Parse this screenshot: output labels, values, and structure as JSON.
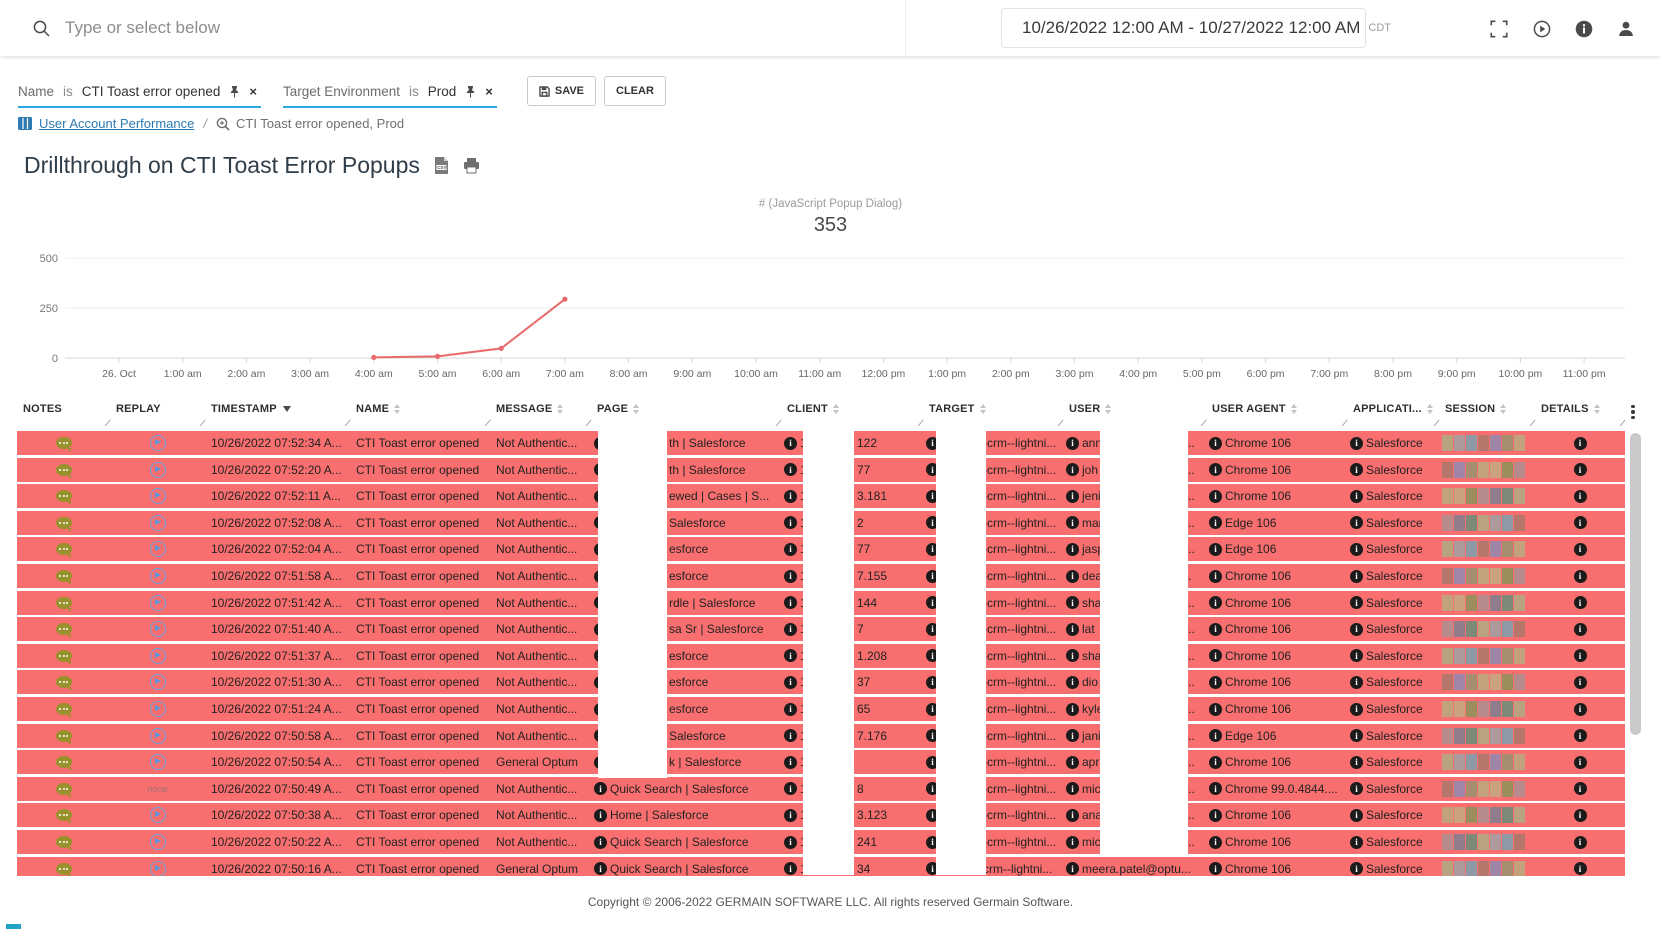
{
  "topbar": {
    "search_placeholder": "Type or select below",
    "date_range": "10/26/2022 12:00 AM - 10/27/2022 12:00 AM",
    "timezone": "CDT"
  },
  "filter_bar": {
    "filters": [
      {
        "field": "Name",
        "operator": "is",
        "value": "CTI Toast error opened"
      },
      {
        "field": "Target Environment",
        "operator": "is",
        "value": "Prod"
      }
    ],
    "save_label": "SAVE",
    "clear_label": "CLEAR"
  },
  "breadcrumb": {
    "root_label": "User Account Performance",
    "separator": "/",
    "current_label": "CTI Toast error opened, Prod"
  },
  "page_title": "Drillthrough on CTI Toast Error Popups",
  "chart_data": {
    "type": "line",
    "title": "# (JavaScript Popup Dialog)",
    "total_label": "353",
    "x_tick_labels": [
      "26. Oct",
      "1:00 am",
      "2:00 am",
      "3:00 am",
      "4:00 am",
      "5:00 am",
      "6:00 am",
      "7:00 am",
      "8:00 am",
      "9:00 am",
      "10:00 am",
      "11:00 am",
      "12:00 pm",
      "1:00 pm",
      "2:00 pm",
      "3:00 pm",
      "4:00 pm",
      "5:00 pm",
      "6:00 pm",
      "7:00 pm",
      "8:00 pm",
      "9:00 pm",
      "10:00 pm",
      "11:00 pm"
    ],
    "y_ticks": [
      0,
      250,
      500
    ],
    "ylim": [
      0,
      500
    ],
    "grid": "horizontal",
    "legend": "none",
    "line_color": "#e96a6a",
    "series": [
      {
        "name": "# (JavaScript Popup Dialog)",
        "points": [
          {
            "x": "4:00 am",
            "y": 3
          },
          {
            "x": "5:00 am",
            "y": 8
          },
          {
            "x": "6:00 am",
            "y": 48
          },
          {
            "x": "7:00 am",
            "y": 294
          }
        ]
      }
    ]
  },
  "table": {
    "columns": [
      {
        "label": "NOTES",
        "sort": "none"
      },
      {
        "label": "REPLAY",
        "sort": "none"
      },
      {
        "label": "TIMESTAMP",
        "sort": "desc"
      },
      {
        "label": "NAME",
        "sort": "both"
      },
      {
        "label": "MESSAGE",
        "sort": "both"
      },
      {
        "label": "PAGE",
        "sort": "both"
      },
      {
        "label": "CLIENT",
        "sort": "both"
      },
      {
        "label": "TARGET",
        "sort": "both"
      },
      {
        "label": "USER",
        "sort": "both"
      },
      {
        "label": "USER AGENT",
        "sort": "both"
      },
      {
        "label": "APPLICATI...",
        "sort": "both"
      },
      {
        "label": "SESSION",
        "sort": "both"
      },
      {
        "label": "DETAILS",
        "sort": "both"
      }
    ],
    "none_replay_label": "none",
    "session_palette": [
      "#b9a27f",
      "#a58d6f",
      "#8f7d8e",
      "#b5776b",
      "#9b8d5c",
      "#ad9a9d",
      "#c2a27b",
      "#7d8a77",
      "#9f86a8",
      "#b78b8b",
      "#8d9aa5",
      "#caa27e"
    ],
    "rows": [
      {
        "timestamp": "10/26/2022 07:52:34 A...",
        "name": "CTI Toast error opened",
        "message": "Not Authentic...",
        "page": "th | Salesforce",
        "page_redacted": true,
        "client_prefix": "1",
        "client_tail": "122",
        "target": "-crm--lightni...",
        "user": "ann",
        "user_trail": "..",
        "user_redacted": true,
        "user_agent": "Chrome 106",
        "application": "Salesforce",
        "replay": "play"
      },
      {
        "timestamp": "10/26/2022 07:52:20 A...",
        "name": "CTI Toast error opened",
        "message": "Not Authentic...",
        "page": "th | Salesforce",
        "page_redacted": true,
        "client_prefix": "1",
        "client_tail": "77",
        "target": "-crm--lightni...",
        "user": "joh",
        "user_trail": "..",
        "user_redacted": true,
        "user_agent": "Chrome 106",
        "application": "Salesforce",
        "replay": "play"
      },
      {
        "timestamp": "10/26/2022 07:52:11 A...",
        "name": "CTI Toast error opened",
        "message": "Not Authentic...",
        "page": "ewed | Cases | S...",
        "page_redacted": true,
        "client_prefix": "1",
        "client_tail": "3.181",
        "target": "-crm--lightni...",
        "user": "jeni",
        "user_trail": "..",
        "user_redacted": true,
        "user_agent": "Chrome 106",
        "application": "Salesforce",
        "replay": "play"
      },
      {
        "timestamp": "10/26/2022 07:52:08 A...",
        "name": "CTI Toast error opened",
        "message": "Not Authentic...",
        "page": "Salesforce",
        "page_redacted": true,
        "client_prefix": "1",
        "client_tail": "2",
        "target": "-crm--lightni...",
        "user": "mar",
        "user_trail": "..",
        "user_redacted": true,
        "user_agent": "Edge 106",
        "application": "Salesforce",
        "replay": "play"
      },
      {
        "timestamp": "10/26/2022 07:52:04 A...",
        "name": "CTI Toast error opened",
        "message": "Not Authentic...",
        "page": "esforce",
        "page_redacted": true,
        "client_prefix": "1",
        "client_tail": "77",
        "target": "-crm--lightni...",
        "user": "jasp",
        "user_trail": "..",
        "user_redacted": true,
        "user_agent": "Edge 106",
        "application": "Salesforce",
        "replay": "play"
      },
      {
        "timestamp": "10/26/2022 07:51:58 A...",
        "name": "CTI Toast error opened",
        "message": "Not Authentic...",
        "page": "esforce",
        "page_redacted": true,
        "client_prefix": "1",
        "client_tail": "7.155",
        "target": "-crm--lightni...",
        "user": "dea",
        "user_trail": ".",
        "user_redacted": true,
        "user_agent": "Chrome 106",
        "application": "Salesforce",
        "replay": "play"
      },
      {
        "timestamp": "10/26/2022 07:51:42 A...",
        "name": "CTI Toast error opened",
        "message": "Not Authentic...",
        "page": "rdle | Salesforce",
        "page_redacted": true,
        "client_prefix": "1",
        "client_tail": "144",
        "target": "-crm--lightni...",
        "user": "sha",
        "user_trail": "..",
        "user_redacted": true,
        "user_agent": "Chrome 106",
        "application": "Salesforce",
        "replay": "play"
      },
      {
        "timestamp": "10/26/2022 07:51:40 A...",
        "name": "CTI Toast error opened",
        "message": "Not Authentic...",
        "page": "sa Sr | Salesforce",
        "page_redacted": true,
        "client_prefix": "1",
        "client_tail": "7",
        "target": "-crm--lightni...",
        "user": "lat",
        "user_trail": "..",
        "user_redacted": true,
        "user_agent": "Chrome 106",
        "application": "Salesforce",
        "replay": "play"
      },
      {
        "timestamp": "10/26/2022 07:51:37 A...",
        "name": "CTI Toast error opened",
        "message": "Not Authentic...",
        "page": "esforce",
        "page_redacted": true,
        "client_prefix": "1",
        "client_tail": "1.208",
        "target": "-crm--lightni...",
        "user": "sha",
        "user_trail": "..",
        "user_redacted": true,
        "user_agent": "Chrome 106",
        "application": "Salesforce",
        "replay": "play"
      },
      {
        "timestamp": "10/26/2022 07:51:30 A...",
        "name": "CTI Toast error opened",
        "message": "Not Authentic...",
        "page": "esforce",
        "page_redacted": true,
        "client_prefix": "1",
        "client_tail": "37",
        "target": "-crm--lightni...",
        "user": "dio",
        "user_trail": "..",
        "user_redacted": true,
        "user_agent": "Chrome 106",
        "application": "Salesforce",
        "replay": "play"
      },
      {
        "timestamp": "10/26/2022 07:51:24 A...",
        "name": "CTI Toast error opened",
        "message": "Not Authentic...",
        "page": "esforce",
        "page_redacted": true,
        "client_prefix": "1",
        "client_tail": "65",
        "target": "-crm--lightni...",
        "user": "kyle",
        "user_trail": "..",
        "user_redacted": true,
        "user_agent": "Chrome 106",
        "application": "Salesforce",
        "replay": "play"
      },
      {
        "timestamp": "10/26/2022 07:50:58 A...",
        "name": "CTI Toast error opened",
        "message": "Not Authentic...",
        "page": "Salesforce",
        "page_redacted": true,
        "client_prefix": "1",
        "client_tail": "7.176",
        "target": "-crm--lightni...",
        "user": "jani",
        "user_trail": "..",
        "user_redacted": true,
        "user_agent": "Edge 106",
        "application": "Salesforce",
        "replay": "play"
      },
      {
        "timestamp": "10/26/2022 07:50:54 A...",
        "name": "CTI Toast error opened",
        "message": "General Optum",
        "page": "k | Salesforce",
        "page_redacted": true,
        "client_prefix": "1",
        "client_tail": "",
        "target": "-crm--lightni...",
        "user": "apr",
        "user_trail": "..",
        "user_redacted": true,
        "user_agent": "Chrome 106",
        "application": "Salesforce",
        "replay": "play"
      },
      {
        "timestamp": "10/26/2022 07:50:49 A...",
        "name": "CTI Toast error opened",
        "message": "Not Authentic...",
        "page": "Quick Search | Salesforce",
        "page_redacted": false,
        "client_prefix": "1",
        "client_tail": "8",
        "target": "-crm--lightni...",
        "user": "mic",
        "user_trail": "..",
        "user_redacted": true,
        "user_agent": "Chrome 99.0.4844....",
        "application": "Salesforce",
        "replay": "none"
      },
      {
        "timestamp": "10/26/2022 07:50:38 A...",
        "name": "CTI Toast error opened",
        "message": "Not Authentic...",
        "page": "Home | Salesforce",
        "page_redacted": false,
        "client_prefix": "1",
        "client_tail": "3.123",
        "target": "-crm--lightni...",
        "user": "ana",
        "user_trail": "..",
        "user_redacted": true,
        "user_agent": "Chrome 106",
        "application": "Salesforce",
        "replay": "play"
      },
      {
        "timestamp": "10/26/2022 07:50:22 A...",
        "name": "CTI Toast error opened",
        "message": "Not Authentic...",
        "page": "Quick Search | Salesforce",
        "page_redacted": false,
        "client_prefix": "1",
        "client_tail": "241",
        "target": "-crm--lightni...",
        "user": "mic",
        "user_trail": "..",
        "user_redacted": true,
        "user_agent": "Chrome 106",
        "application": "Salesforce",
        "replay": "play"
      },
      {
        "timestamp": "10/26/2022 07:50:16 A...",
        "name": "CTI Toast error opened",
        "message": "General Optum",
        "page": "Quick Search | Salesforce",
        "page_redacted": false,
        "client_prefix": "1",
        "client_tail": "34",
        "target": "crm--lightni...",
        "user": "meera.patel@optu...",
        "user_trail": "",
        "user_redacted": false,
        "user_agent": "Chrome 106",
        "application": "Salesforce",
        "replay": "play"
      }
    ]
  },
  "footer": {
    "copyright": "Copyright © 2006-2022 GERMAIN SOFTWARE LLC. All rights reserved Germain Software."
  }
}
